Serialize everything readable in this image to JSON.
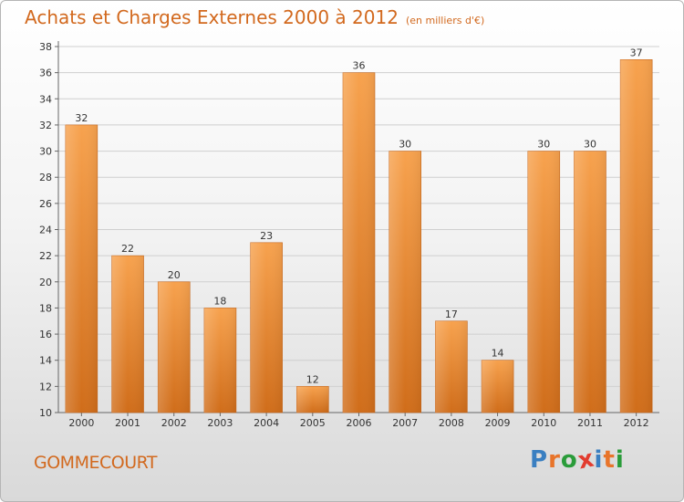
{
  "title": {
    "main": "Achats et Charges Externes 2000 à 2012",
    "unit": "(en milliers d'€)"
  },
  "commune": "GOMMECOURT",
  "logo": {
    "letters": [
      "P",
      "r",
      "o",
      "x",
      "i",
      "t",
      "i"
    ],
    "colors": [
      "#3a7fc1",
      "#e8742a",
      "#2a9c3a",
      "#e23c2f",
      "#3a7fc1",
      "#e8742a",
      "#2a9c3a"
    ],
    "text": "Proxiti"
  },
  "chart_data": {
    "type": "bar",
    "categories": [
      "2000",
      "2001",
      "2002",
      "2003",
      "2004",
      "2005",
      "2006",
      "2007",
      "2008",
      "2009",
      "2010",
      "2011",
      "2012"
    ],
    "values": [
      32,
      22,
      20,
      18,
      23,
      12,
      36,
      30,
      17,
      14,
      30,
      30,
      37
    ],
    "yticks": [
      "10",
      "12",
      "14",
      "16",
      "18",
      "20",
      "22",
      "24",
      "26",
      "28",
      "30",
      "32",
      "34",
      "36",
      "38"
    ],
    "ylim": [
      10,
      38
    ],
    "grid": true,
    "bar_color_top": "#f7a24e",
    "bar_color_bottom": "#d06d1a"
  }
}
